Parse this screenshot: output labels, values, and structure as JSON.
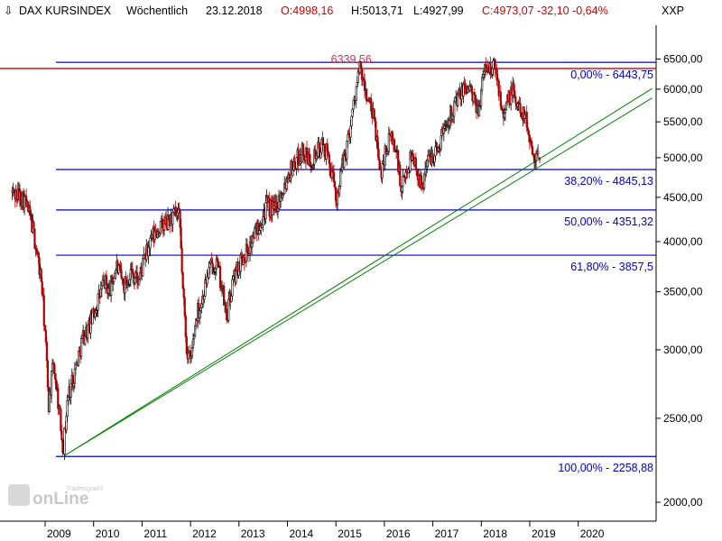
{
  "header": {
    "instrument": "DAX KURSINDEX",
    "interval": "Wöchentlich",
    "date": "23.12.2018",
    "open": "O:4998,16",
    "high": "H:5013,71",
    "low": "L:4927,99",
    "close_change": "C:4973,07 -32,10 -0,64%"
  },
  "axis": {
    "unit_label": "XXP"
  },
  "logo": {
    "text": "onLine",
    "sub": "Tradesignal®"
  },
  "colors": {
    "background": "#ffffff",
    "up_candle": "#000000",
    "down_candle": "#b00000",
    "fib_line": "#0000cc",
    "peak_line": "#d40000",
    "trend_line": "#008000",
    "header_red": "#d40000"
  },
  "chart_data": {
    "type": "candlestick",
    "title": "DAX KURSINDEX Wöchentlich",
    "x_range": [
      2008.1,
      2021.3
    ],
    "ylim": [
      1800,
      6600
    ],
    "y_scale": "log",
    "y_ticks": [
      2000,
      2500,
      3000,
      3500,
      4000,
      4500,
      5000,
      5500,
      6000,
      6500
    ],
    "y_tick_labels": [
      "2000,00",
      "2500,00",
      "3000,00",
      "3500,00",
      "4000,00",
      "4500,00",
      "5000,00",
      "5500,00",
      "6000,00",
      "6500,00"
    ],
    "x_tick_labels": [
      "2009",
      "2010",
      "2011",
      "2012",
      "2013",
      "2014",
      "2015",
      "2016",
      "2017",
      "2018",
      "2019",
      "2020"
    ],
    "path": [
      [
        2008.1,
        4560
      ],
      [
        2008.35,
        4480
      ],
      [
        2008.5,
        4200
      ],
      [
        2008.6,
        3900
      ],
      [
        2008.7,
        3600
      ],
      [
        2008.78,
        3100
      ],
      [
        2008.85,
        2600
      ],
      [
        2008.95,
        2900
      ],
      [
        2009.05,
        2600
      ],
      [
        2009.15,
        2300
      ],
      [
        2009.25,
        2650
      ],
      [
        2009.4,
        2850
      ],
      [
        2009.55,
        3100
      ],
      [
        2009.7,
        3200
      ],
      [
        2009.85,
        3400
      ],
      [
        2010.0,
        3600
      ],
      [
        2010.1,
        3500
      ],
      [
        2010.25,
        3750
      ],
      [
        2010.4,
        3550
      ],
      [
        2010.55,
        3700
      ],
      [
        2010.7,
        3600
      ],
      [
        2010.85,
        3850
      ],
      [
        2011.0,
        4050
      ],
      [
        2011.15,
        4150
      ],
      [
        2011.3,
        4200
      ],
      [
        2011.45,
        4300
      ],
      [
        2011.55,
        4250
      ],
      [
        2011.62,
        3500
      ],
      [
        2011.7,
        3000
      ],
      [
        2011.78,
        2900
      ],
      [
        2011.9,
        3300
      ],
      [
        2012.0,
        3400
      ],
      [
        2012.15,
        3700
      ],
      [
        2012.3,
        3800
      ],
      [
        2012.42,
        3550
      ],
      [
        2012.52,
        3250
      ],
      [
        2012.65,
        3600
      ],
      [
        2012.8,
        3800
      ],
      [
        2013.0,
        3950
      ],
      [
        2013.15,
        4150
      ],
      [
        2013.35,
        4400
      ],
      [
        2013.5,
        4350
      ],
      [
        2013.65,
        4550
      ],
      [
        2013.8,
        4800
      ],
      [
        2014.0,
        5000
      ],
      [
        2014.1,
        5100
      ],
      [
        2014.2,
        4950
      ],
      [
        2014.35,
        5050
      ],
      [
        2014.5,
        5150
      ],
      [
        2014.6,
        5050
      ],
      [
        2014.7,
        4750
      ],
      [
        2014.78,
        4450
      ],
      [
        2014.88,
        4800
      ],
      [
        2015.0,
        5150
      ],
      [
        2015.12,
        5650
      ],
      [
        2015.22,
        6150
      ],
      [
        2015.28,
        6339.56
      ],
      [
        2015.35,
        6050
      ],
      [
        2015.45,
        5800
      ],
      [
        2015.55,
        5550
      ],
      [
        2015.62,
        5250
      ],
      [
        2015.68,
        4750
      ],
      [
        2015.78,
        5050
      ],
      [
        2015.92,
        5300
      ],
      [
        2016.05,
        5000
      ],
      [
        2016.12,
        4550
      ],
      [
        2016.2,
        4750
      ],
      [
        2016.35,
        5050
      ],
      [
        2016.5,
        4750
      ],
      [
        2016.55,
        4550
      ],
      [
        2016.62,
        4900
      ],
      [
        2016.75,
        5050
      ],
      [
        2016.88,
        5100
      ],
      [
        2016.95,
        5300
      ],
      [
        2017.05,
        5500
      ],
      [
        2017.15,
        5650
      ],
      [
        2017.25,
        5800
      ],
      [
        2017.35,
        5900
      ],
      [
        2017.45,
        6050
      ],
      [
        2017.55,
        6000
      ],
      [
        2017.62,
        5800
      ],
      [
        2017.7,
        5650
      ],
      [
        2017.78,
        6000
      ],
      [
        2017.85,
        6350
      ],
      [
        2017.92,
        6380
      ],
      [
        2017.98,
        6250
      ],
      [
        2018.05,
        6443.75
      ],
      [
        2018.12,
        6100
      ],
      [
        2018.18,
        5850
      ],
      [
        2018.25,
        5650
      ],
      [
        2018.35,
        5850
      ],
      [
        2018.42,
        6000
      ],
      [
        2018.5,
        5750
      ],
      [
        2018.58,
        5700
      ],
      [
        2018.65,
        5650
      ],
      [
        2018.72,
        5450
      ],
      [
        2018.78,
        5250
      ],
      [
        2018.85,
        5100
      ],
      [
        2018.9,
        5000
      ],
      [
        2018.96,
        4973.07
      ]
    ],
    "last_candle": {
      "x": 2018.98,
      "open": 4998.16,
      "high": 5013.71,
      "low": 4927.99,
      "close": 4973.07
    },
    "fib_levels": [
      {
        "pct": "0,00%",
        "value": 6443.75,
        "label": "0,00% - 6443,75",
        "x_start": 2009.0
      },
      {
        "pct": "38,20%",
        "value": 4845.13,
        "label": "38,20% - 4845,13",
        "x_start": 2009.0
      },
      {
        "pct": "50,00%",
        "value": 4351.32,
        "label": "50,00% - 4351,32",
        "x_start": 2009.0
      },
      {
        "pct": "61,80%",
        "value": 3857.5,
        "label": "61,80% - 3857,5",
        "x_start": 2009.0
      },
      {
        "pct": "100,00%",
        "value": 2258.88,
        "label": "100,00% - 2258,88",
        "x_start": 2009.0
      }
    ],
    "peak_line": {
      "value": 6339.56,
      "label": "6339,56",
      "label_x": 2015.28
    },
    "trend_lines": [
      {
        "x0": 2009.15,
        "y0": 2258.88,
        "x1": 2021.3,
        "y1": 6010
      },
      {
        "x0": 2009.15,
        "y0": 2258.88,
        "x1": 2021.3,
        "y1": 5860
      }
    ]
  }
}
